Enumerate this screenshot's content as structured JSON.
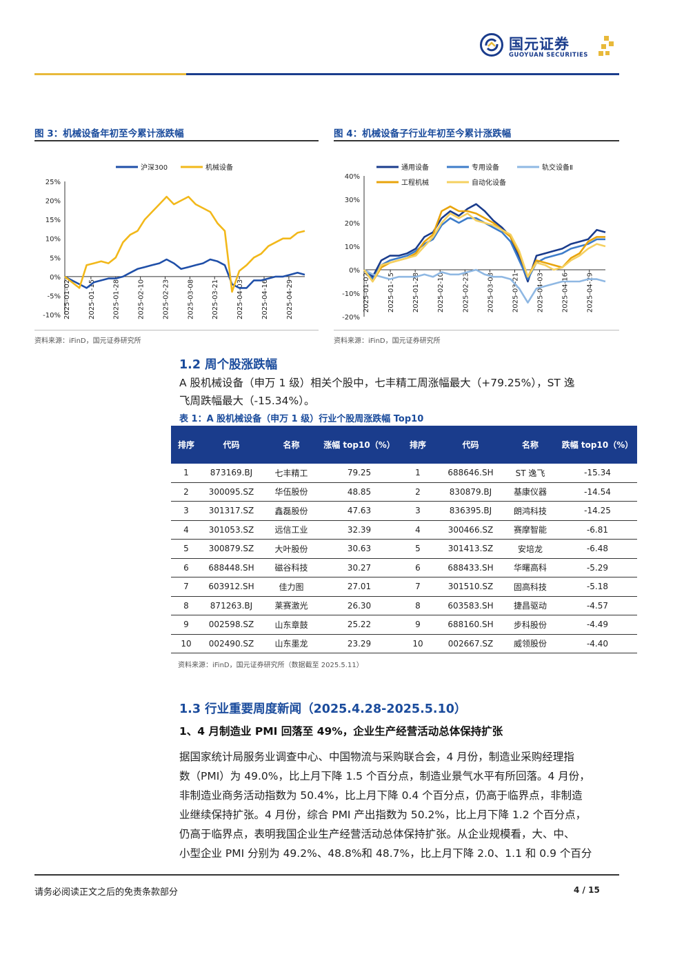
{
  "header": {
    "company_cn": "国元证券",
    "company_en": "GUOYUAN SECURITIES"
  },
  "fig3": {
    "title": "图 3：机械设备年初至今累计涨跌幅",
    "source": "资料来源：iFinD，国元证券研究所"
  },
  "fig4": {
    "title": "图 4：机械设备子行业年初至今累计涨跌幅",
    "source": "资料来源：iFinD，国元证券研究所"
  },
  "chart_data": [
    {
      "type": "line",
      "x_ticks": [
        "2025-01-02",
        "2025-01-15",
        "2025-01-28",
        "2025-02-10",
        "2025-02-23",
        "2025-03-08",
        "2025-03-21",
        "2025-04-03",
        "2025-04-16",
        "2025-04-29"
      ],
      "ylim": [
        -10,
        25
      ],
      "y_ticks": [
        "-10%",
        "-5%",
        "0%",
        "5%",
        "10%",
        "15%",
        "20%",
        "25%"
      ],
      "legend": "top",
      "series": [
        {
          "name": "沪深300",
          "color": "#1f4fa8",
          "values": [
            0,
            -1,
            -2,
            -3,
            -1.5,
            -1,
            -0.5,
            -0.5,
            0,
            1,
            2,
            2.5,
            3,
            3.5,
            4.5,
            3.5,
            2,
            2.5,
            3,
            3.5,
            4.5,
            4,
            3,
            -2,
            -3,
            -3,
            -1,
            -1,
            -0.5,
            0,
            0,
            0.5,
            1,
            0.5
          ]
        },
        {
          "name": "机械设备",
          "color": "#f2b81a",
          "values": [
            0,
            -1.5,
            -3,
            3,
            3.5,
            4,
            3.5,
            5,
            9,
            11,
            12,
            15,
            17,
            19,
            21,
            19,
            20,
            21,
            19,
            18,
            17,
            14,
            12,
            -4,
            1.5,
            3,
            5,
            6,
            8,
            9,
            10,
            10,
            11.5,
            12
          ]
        }
      ]
    },
    {
      "type": "line",
      "x_ticks": [
        "2025-01-02",
        "2025-01-15",
        "2025-01-28",
        "2025-02-10",
        "2025-02-23",
        "2025-03-08",
        "2025-03-21",
        "2025-04-03",
        "2025-04-16",
        "2025-04-29"
      ],
      "ylim": [
        -20,
        40
      ],
      "y_ticks": [
        "-20%",
        "-10%",
        "0%",
        "10%",
        "20%",
        "30%",
        "40%"
      ],
      "legend": "top",
      "series": [
        {
          "name": "通用设备",
          "color": "#1a3c8c",
          "values": [
            0,
            -3,
            4,
            6,
            6,
            7,
            9,
            14,
            16,
            22,
            25,
            23,
            26,
            28,
            25,
            21,
            18,
            14,
            5,
            -5,
            6,
            7,
            8,
            9,
            11,
            12,
            13,
            17,
            16
          ]
        },
        {
          "name": "专用设备",
          "color": "#3d7cc9",
          "values": [
            0,
            -4,
            2,
            4,
            5,
            6,
            8,
            11,
            13,
            19,
            22,
            20,
            22,
            22,
            20,
            18,
            16,
            12,
            4,
            -4,
            3,
            5,
            6,
            7,
            9,
            10,
            11,
            13,
            13
          ]
        },
        {
          "name": "轨交设备Ⅱ",
          "color": "#8fb8e3",
          "values": [
            0,
            -2,
            -3,
            -4,
            -3,
            -3,
            -3,
            -2,
            -3,
            -1,
            -2,
            -2,
            -1,
            0,
            -2,
            -3,
            -3,
            -4,
            -8,
            -14,
            -8,
            -7,
            -6,
            -5,
            -5,
            -5,
            -4,
            -4,
            -5
          ]
        },
        {
          "name": "工程机械",
          "color": "#e8a40c",
          "values": [
            0,
            -5,
            1,
            3,
            4,
            5,
            7,
            12,
            15,
            25,
            27,
            25,
            25,
            24,
            22,
            20,
            17,
            14,
            7,
            -3,
            4,
            3,
            2,
            1,
            5,
            7,
            12,
            14,
            14
          ]
        },
        {
          "name": "自动化设备",
          "color": "#f5d060",
          "values": [
            0,
            -5,
            2,
            3,
            4,
            5,
            6,
            10,
            14,
            20,
            24,
            22,
            24,
            21,
            20,
            19,
            17,
            15,
            8,
            -3,
            3,
            2,
            0,
            1,
            4,
            6,
            9,
            11,
            10
          ]
        }
      ]
    }
  ],
  "sec12": {
    "heading": "1.2 周个股涨跌幅",
    "para_line1": "A 股机械设备（申万 1 级）相关个股中，七丰精工周涨幅最大（+79.25%），ST 逸",
    "para_line2": "飞周跌幅最大（-15.34%）。"
  },
  "table1": {
    "title": "表 1：A 股机械设备（申万 1 级）行业个股周涨跌幅 Top10",
    "headers": [
      "排序",
      "代码",
      "名称",
      "涨幅 top10（%）",
      "排序",
      "代码",
      "名称",
      "跌幅 top10（%）"
    ],
    "rows": [
      [
        "1",
        "873169.BJ",
        "七丰精工",
        "79.25",
        "1",
        "688646.SH",
        "ST 逸飞",
        "-15.34"
      ],
      [
        "2",
        "300095.SZ",
        "华伍股份",
        "48.85",
        "2",
        "830879.BJ",
        "基康仪器",
        "-14.54"
      ],
      [
        "3",
        "301317.SZ",
        "鑫磊股份",
        "47.63",
        "3",
        "836395.BJ",
        "朗鸿科技",
        "-14.25"
      ],
      [
        "4",
        "301053.SZ",
        "远信工业",
        "32.39",
        "4",
        "300466.SZ",
        "赛摩智能",
        "-6.81"
      ],
      [
        "5",
        "300879.SZ",
        "大叶股份",
        "30.63",
        "5",
        "301413.SZ",
        "安培龙",
        "-6.48"
      ],
      [
        "6",
        "688448.SH",
        "磁谷科技",
        "30.27",
        "6",
        "688433.SH",
        "华曙高科",
        "-5.29"
      ],
      [
        "7",
        "603912.SH",
        "佳力图",
        "27.01",
        "7",
        "301510.SZ",
        "固高科技",
        "-5.18"
      ],
      [
        "8",
        "871263.BJ",
        "莱赛激光",
        "26.30",
        "8",
        "603583.SH",
        "捷昌驱动",
        "-4.57"
      ],
      [
        "9",
        "002598.SZ",
        "山东章鼓",
        "25.22",
        "9",
        "688160.SH",
        "步科股份",
        "-4.49"
      ],
      [
        "10",
        "002490.SZ",
        "山东墨龙",
        "23.29",
        "10",
        "002667.SZ",
        "威领股份",
        "-4.40"
      ]
    ],
    "source": "资料来源：iFinD，国元证券研究所（数据截至 2025.5.11）"
  },
  "sec13": {
    "heading": "1.3 行业重要周度新闻（2025.4.28-2025.5.10）",
    "news1_title": "1、4 月制造业 PMI 回落至 49%，企业生产经营活动总体保持扩张",
    "lines": [
      "据国家统计局服务业调查中心、中国物流与采购联合会，4 月份，制造业采购经理指",
      "数（PMI）为 49.0%，比上月下降 1.5 个百分点，制造业景气水平有所回落。4 月份，",
      "非制造业商务活动指数为 50.4%，比上月下降 0.4 个百分点，仍高于临界点，非制造",
      "业继续保持扩张。4 月份，综合 PMI 产出指数为 50.2%，比上月下降 1.2 个百分点，",
      "仍高于临界点，表明我国企业生产经营活动总体保持扩张。从企业规模看，大、中、",
      "小型企业 PMI 分别为 49.2%、48.8%和 48.7%，比上月下降 2.0、1.1 和 0.9 个百分"
    ]
  },
  "footer": {
    "disclaimer": "请务必阅读正文之后的免责条款部分",
    "page": "4 / 15"
  }
}
